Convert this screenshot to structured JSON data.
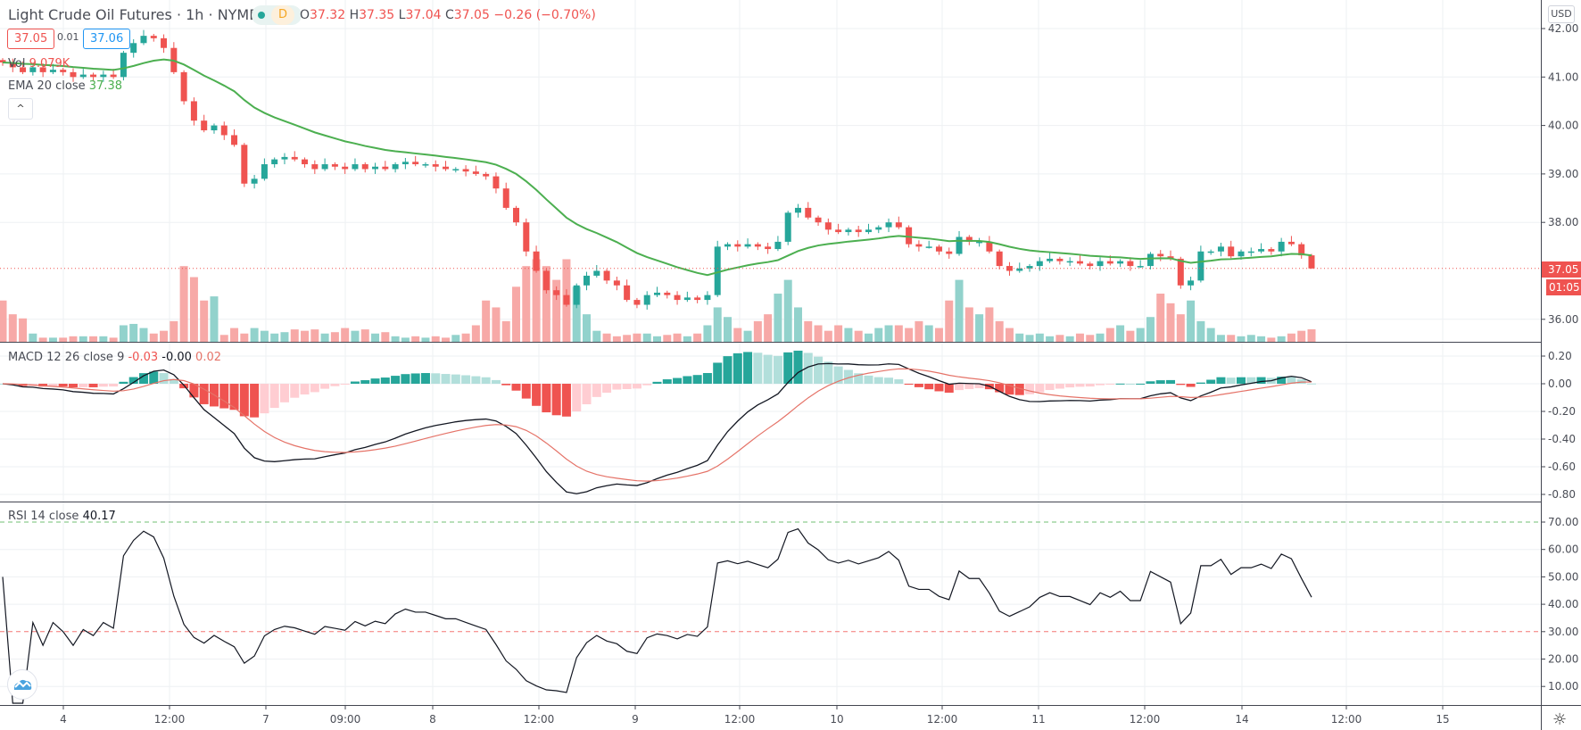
{
  "header": {
    "title": "Light Crude Oil Futures · 1h · NYMEX",
    "status_badge": "D",
    "ohlc": {
      "o_label": "O",
      "o": "37.32",
      "h_label": "H",
      "h": "37.35",
      "l_label": "L",
      "l": "37.04",
      "c_label": "C",
      "c": "37.05",
      "change": "−0.26 (−0.70%)"
    },
    "bid": "37.05",
    "spread": "0.01",
    "ask": "37.06"
  },
  "legend": {
    "vol_label": "Vol",
    "vol_value": "9.079K",
    "ema_label": "EMA 20 close",
    "ema_value": "37.38",
    "macd_label": "MACD 12 26 close 9",
    "macd_hist": "-0.03",
    "macd_value": "-0.00",
    "macd_signal": "0.02",
    "rsi_label": "RSI 14 close",
    "rsi_value": "40.17",
    "collapse_icon": "^"
  },
  "price_axis": {
    "currency": "USD",
    "ticks": [
      "42.00",
      "41.00",
      "40.00",
      "39.00",
      "38.00",
      "36.00"
    ],
    "last_price": "37.05",
    "countdown": "01:05"
  },
  "macd_axis": {
    "ticks": [
      "0.20",
      "0.00",
      "-0.20",
      "-0.40",
      "-0.60",
      "-0.80"
    ]
  },
  "rsi_axis": {
    "ticks": [
      "70.00",
      "60.00",
      "50.00",
      "40.00",
      "30.00",
      "20.00",
      "10.00"
    ]
  },
  "time_axis": {
    "labels": [
      "4",
      "12:00",
      "7",
      "09:00",
      "8",
      "12:00",
      "9",
      "12:00",
      "10",
      "12:00",
      "11",
      "12:00",
      "14",
      "12:00",
      "15"
    ]
  },
  "colors": {
    "up": "#26a69a",
    "down": "#ef5350",
    "vol_up": "#92d2cc",
    "vol_down": "#f7a9a7",
    "ema": "#4caf50",
    "macd": "#131722",
    "signal": "#e57368",
    "grid": "#eef0f3"
  },
  "chart_data": {
    "type": "candlestick",
    "symbol": "Light Crude Oil Futures",
    "interval": "1h",
    "ylim": [
      35.5,
      42.5
    ],
    "close": [
      41.3,
      41.2,
      41.1,
      41.2,
      41.1,
      41.15,
      41.1,
      41.0,
      41.05,
      41.0,
      41.05,
      41.0,
      41.5,
      41.7,
      41.85,
      41.8,
      41.6,
      41.1,
      40.5,
      40.1,
      39.9,
      40.0,
      39.8,
      39.6,
      38.8,
      38.9,
      39.2,
      39.3,
      39.35,
      39.3,
      39.2,
      39.1,
      39.2,
      39.15,
      39.1,
      39.2,
      39.1,
      39.15,
      39.1,
      39.2,
      39.25,
      39.2,
      39.2,
      39.15,
      39.1,
      39.1,
      39.05,
      39.0,
      38.95,
      38.7,
      38.3,
      38.0,
      37.4,
      37.0,
      36.6,
      36.5,
      36.3,
      36.7,
      36.9,
      37.0,
      36.8,
      36.7,
      36.4,
      36.3,
      36.5,
      36.55,
      36.5,
      36.4,
      36.45,
      36.4,
      36.5,
      37.5,
      37.55,
      37.5,
      37.55,
      37.5,
      37.45,
      37.6,
      38.2,
      38.3,
      38.1,
      38.0,
      37.85,
      37.8,
      37.85,
      37.8,
      37.85,
      37.9,
      38.0,
      37.9,
      37.55,
      37.5,
      37.5,
      37.4,
      37.35,
      37.7,
      37.6,
      37.6,
      37.4,
      37.1,
      37.0,
      37.05,
      37.1,
      37.2,
      37.25,
      37.2,
      37.2,
      37.15,
      37.1,
      37.2,
      37.15,
      37.2,
      37.1,
      37.1,
      37.35,
      37.3,
      37.25,
      36.7,
      36.8,
      37.4,
      37.4,
      37.5,
      37.3,
      37.4,
      37.4,
      37.45,
      37.4,
      37.6,
      37.55,
      37.32,
      37.05
    ],
    "volume_k": [
      30,
      20,
      17,
      6,
      3,
      3,
      3,
      4,
      4,
      4,
      4,
      3,
      12,
      13,
      10,
      6,
      8,
      15,
      55,
      47,
      30,
      33,
      5,
      10,
      6,
      10,
      8,
      6,
      7,
      9,
      8,
      9,
      6,
      7,
      10,
      8,
      9,
      6,
      7,
      4,
      3,
      4,
      3,
      4,
      3,
      5,
      6,
      12,
      30,
      25,
      15,
      40,
      55,
      60,
      55,
      45,
      60,
      40,
      20,
      8,
      6,
      4,
      5,
      6,
      6,
      4,
      5,
      6,
      4,
      6,
      12,
      25,
      18,
      10,
      8,
      15,
      20,
      35,
      45,
      25,
      15,
      12,
      8,
      12,
      10,
      8,
      6,
      10,
      12,
      12,
      10,
      15,
      12,
      10,
      30,
      45,
      25,
      20,
      25,
      15,
      10,
      6,
      5,
      6,
      4,
      5,
      4,
      6,
      5,
      6,
      10,
      12,
      8,
      10,
      18,
      35,
      28,
      20,
      30,
      15,
      10,
      5,
      5,
      4,
      5,
      4,
      3,
      4,
      6,
      8,
      9.079
    ],
    "indicators": [
      "Volume",
      "EMA 20 close",
      "MACD 12 26 close 9",
      "RSI 14 close"
    ],
    "rsi_levels": [
      70,
      30
    ]
  }
}
